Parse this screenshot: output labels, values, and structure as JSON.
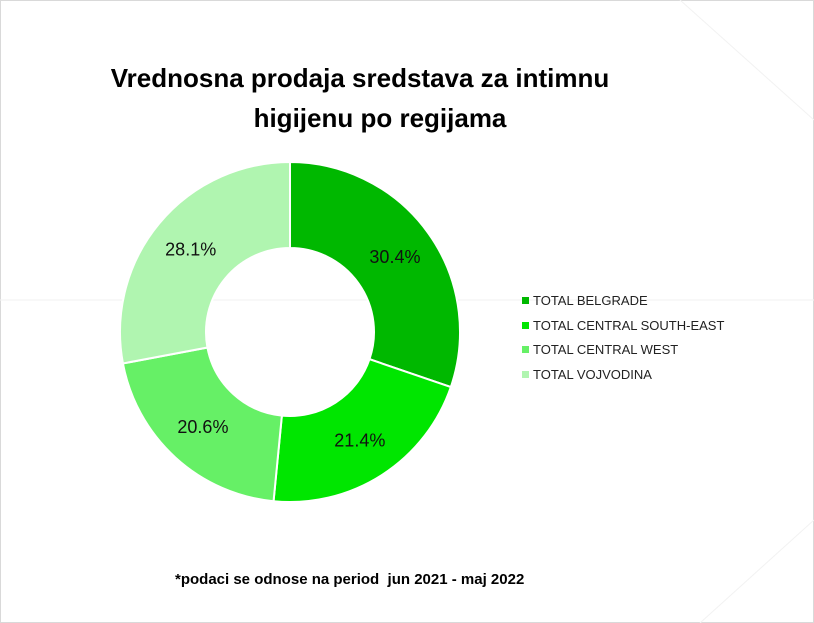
{
  "title_line1": "Vrednosna prodaja sredstava za intimnu",
  "title_line2": "higijenu  po regijama",
  "footnote": "*podaci se odnose na period  jun 2021 - maj 2022",
  "chart_data": {
    "type": "pie",
    "donut": true,
    "title": "Vrednosna prodaja sredstava za intimnu higijenu  po regijama",
    "categories": [
      "TOTAL BELGRADE",
      "TOTAL CENTRAL SOUTH-EAST",
      "TOTAL CENTRAL WEST",
      "TOTAL VOJVODINA"
    ],
    "values": [
      30.4,
      21.4,
      20.6,
      28.1
    ],
    "labels": [
      "30.4%",
      "21.4%",
      "20.6%",
      "28.1%"
    ],
    "colors": [
      "#00b800",
      "#00e600",
      "#66f066",
      "#b0f5b0"
    ],
    "legend_position": "right"
  }
}
